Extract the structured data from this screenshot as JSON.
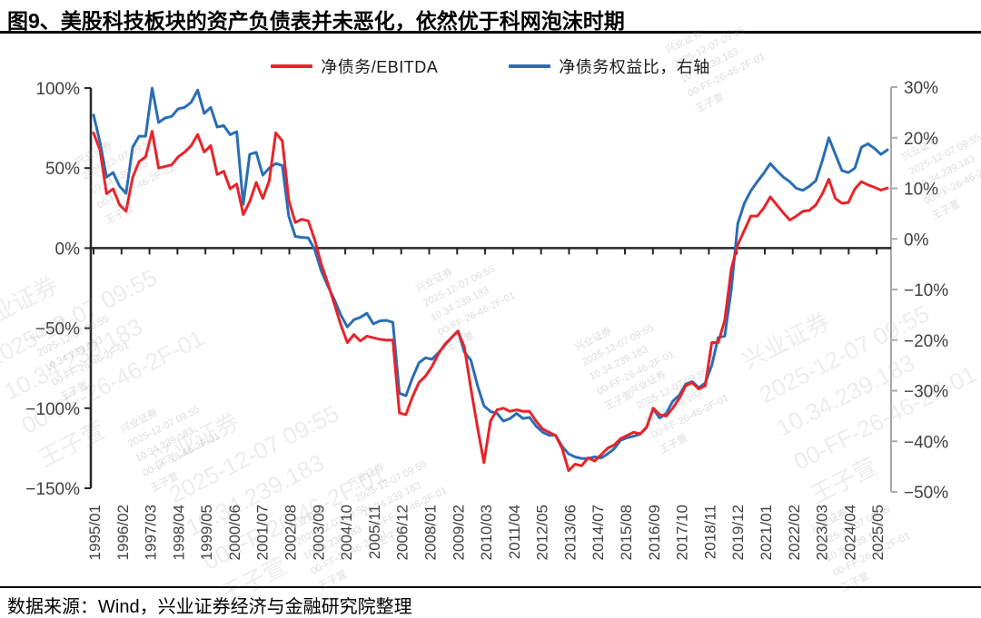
{
  "page": {
    "title": "图9、美股科技板块的资产负债表并未恶化，依然优于科网泡沫时期",
    "footer": "数据来源：Wind，兴业证券经济与金融研究院整理"
  },
  "colors": {
    "series_red": "#e8232a",
    "series_blue": "#2a6db5",
    "axis_dark": "#262626",
    "axis_gray": "#aaaaaa",
    "tick_label": "#404040"
  },
  "watermark": {
    "lines": [
      "兴业证券",
      "2025-12-07 09:55",
      "10.34.239.183",
      "00-FF-26-46-2F-01",
      "王子萱"
    ]
  },
  "chart_data": {
    "type": "line",
    "title": "图9、美股科技板块的资产负债表并未恶化，依然优于科网泡沫时期",
    "legend": [
      {
        "label": "净债务/EBITDA",
        "color": "#e8232a",
        "axis": "left"
      },
      {
        "label": "净债务权益比，右轴",
        "color": "#2a6db5",
        "axis": "right"
      }
    ],
    "left_axis": {
      "tick_labels": [
        "100%",
        "50%",
        "0%",
        "−50%",
        "−100%",
        "−150%"
      ],
      "tick_values": [
        100,
        50,
        0,
        -50,
        -100,
        -150
      ],
      "range": [
        -150,
        100
      ]
    },
    "right_axis": {
      "tick_labels": [
        "30%",
        "20%",
        "10%",
        "0%",
        "−10%",
        "−20%",
        "−30%",
        "−40%",
        "−50%"
      ],
      "tick_values": [
        30,
        20,
        10,
        0,
        -10,
        -20,
        -30,
        -40,
        -50
      ],
      "range": [
        -50,
        30
      ]
    },
    "x_tick_labels": [
      "1995/01",
      "1996/02",
      "1997/03",
      "1998/04",
      "1999/05",
      "2000/06",
      "2001/07",
      "2002/08",
      "2003/09",
      "2004/10",
      "2005/11",
      "2006/12",
      "2008/01",
      "2009/02",
      "2010/03",
      "2011/04",
      "2012/05",
      "2013/06",
      "2014/07",
      "2015/08",
      "2016/09",
      "2017/10",
      "2018/11",
      "2019/12",
      "2021/01",
      "2022/02",
      "2023/03",
      "2024/04",
      "2025/05"
    ],
    "x_start": "1995/01",
    "x_step_months": 3,
    "grid": false,
    "legend_position": "top",
    "series": [
      {
        "name": "净债务/EBITDA",
        "axis": "left",
        "unit": "%",
        "values": [
          72,
          61,
          34,
          37,
          27,
          23,
          44,
          54,
          57,
          73,
          50,
          51,
          52,
          57,
          60,
          64,
          71,
          60,
          64,
          46,
          48,
          37,
          40,
          21,
          29,
          41,
          31,
          42,
          72,
          67,
          30,
          16,
          18,
          17,
          5,
          -10,
          -22,
          -35,
          -48,
          -59,
          -54,
          -58,
          -55,
          -56,
          -57,
          -57.5,
          -57.5,
          -103,
          -104,
          -93,
          -84,
          -80,
          -74,
          -66,
          -60,
          -56,
          -52,
          -62,
          -88,
          -112,
          -134,
          -108,
          -101,
          -100,
          -102,
          -101,
          -102,
          -102,
          -108,
          -113,
          -115,
          -117,
          -125,
          -139,
          -135,
          -136,
          -131,
          -133,
          -129,
          -125,
          -123,
          -119,
          -117,
          -115,
          -116,
          -112,
          -100,
          -104,
          -105,
          -100,
          -94,
          -86,
          -84,
          -88,
          -86,
          -59,
          -59,
          -45,
          -13,
          2,
          11,
          20,
          20,
          25,
          32,
          27,
          22,
          17.5,
          20,
          23,
          23.5,
          27,
          34,
          43,
          31,
          28,
          28.5,
          37,
          41.5,
          39.5,
          38,
          36.2,
          37.5
        ]
      },
      {
        "name": "净债务权益比，右轴",
        "axis": "right",
        "unit": "%",
        "values": [
          24.5,
          19,
          12.2,
          13.1,
          10.4,
          9,
          18.1,
          20.3,
          20.3,
          29.8,
          23,
          23.9,
          24.2,
          25.7,
          26,
          27,
          29.4,
          24.8,
          26,
          22.1,
          22.4,
          20.6,
          21.2,
          6.8,
          16.7,
          17.1,
          12.6,
          14,
          14.9,
          14.5,
          4.5,
          0.5,
          0.3,
          0.2,
          -2.2,
          -6.3,
          -9.3,
          -12,
          -15,
          -17.4,
          -16,
          -15.5,
          -14.7,
          -16.8,
          -16.2,
          -16.1,
          -16.5,
          -30.5,
          -31,
          -27.5,
          -24.5,
          -23.5,
          -23.8,
          -22.5,
          -21,
          -19.5,
          -18.2,
          -22.4,
          -24,
          -29,
          -33,
          -34.1,
          -34.5,
          -36,
          -35.5,
          -34.5,
          -35.5,
          -35.3,
          -37,
          -38.2,
          -38.8,
          -38.8,
          -41,
          -42.5,
          -43.1,
          -43.4,
          -43.4,
          -43.1,
          -43.3,
          -42.5,
          -41.5,
          -39.8,
          -39.3,
          -39,
          -38.6,
          -37.2,
          -33.6,
          -35.4,
          -34.5,
          -32.1,
          -30.9,
          -28.7,
          -28.2,
          -29.4,
          -28.5,
          -25,
          -19.5,
          -19.2,
          -10,
          3,
          7,
          9.5,
          11.3,
          13,
          14.9,
          13.5,
          12.2,
          11.3,
          10,
          9.6,
          10.4,
          11.5,
          15.5,
          20,
          16.7,
          13.5,
          13.1,
          14,
          18.1,
          18.8,
          17.9,
          16.7,
          17.6
        ]
      }
    ]
  }
}
